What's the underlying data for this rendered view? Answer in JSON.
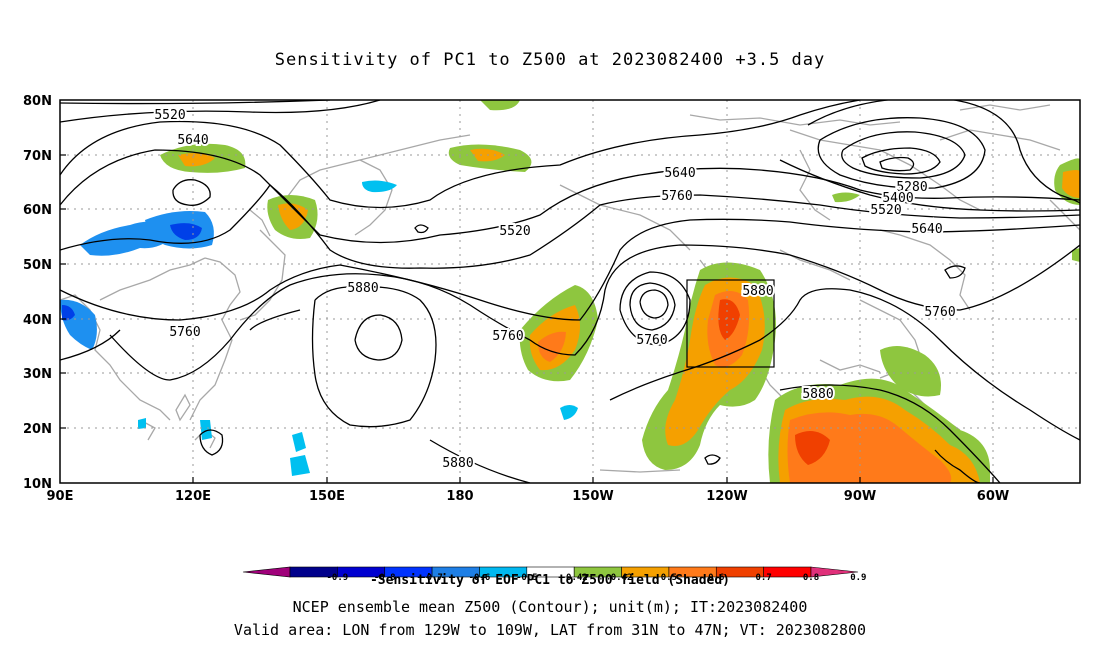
{
  "title": "Sensitivity of PC1 to Z500 at 2023082400 +3.5 day",
  "map": {
    "lat_labels": [
      "80N",
      "70N",
      "60N",
      "50N",
      "40N",
      "30N",
      "20N",
      "10N"
    ],
    "lon_labels": [
      "90E",
      "120E",
      "150E",
      "180",
      "150W",
      "120W",
      "90W",
      "60W"
    ],
    "contour_labels": [
      "5520",
      "5640",
      "5640",
      "5760",
      "5520",
      "5880",
      "5760",
      "5760",
      "5880",
      "5760",
      "5880",
      "5280",
      "5400",
      "5520",
      "5640",
      "5760",
      "5880"
    ]
  },
  "colorbar": {
    "tick_labels": [
      "-0.9",
      "-0.8",
      "-0.7",
      "-0.6",
      "-0.5",
      "-0.42",
      "0.42",
      "0.5",
      "0.6",
      "0.7",
      "0.8",
      "0.9"
    ],
    "colors": [
      "#a0007a",
      "#00008b",
      "#0000d0",
      "#0033ff",
      "#1e7fe6",
      "#00b8f0",
      "#ffffff",
      "#8ec63f",
      "#f5a000",
      "#ff7a1a",
      "#f04000",
      "#ff0000",
      "#e0307a"
    ]
  },
  "captions": {
    "line1": "-Sensitivity of EOF PC1 to Z500 field (Shaded)",
    "line2": "NCEP ensemble mean Z500 (Contour); unit(m); IT:2023082400",
    "line3": "Valid area: LON from 129W to 109W, LAT from 31N to 47N; VT: 2023082800"
  }
}
